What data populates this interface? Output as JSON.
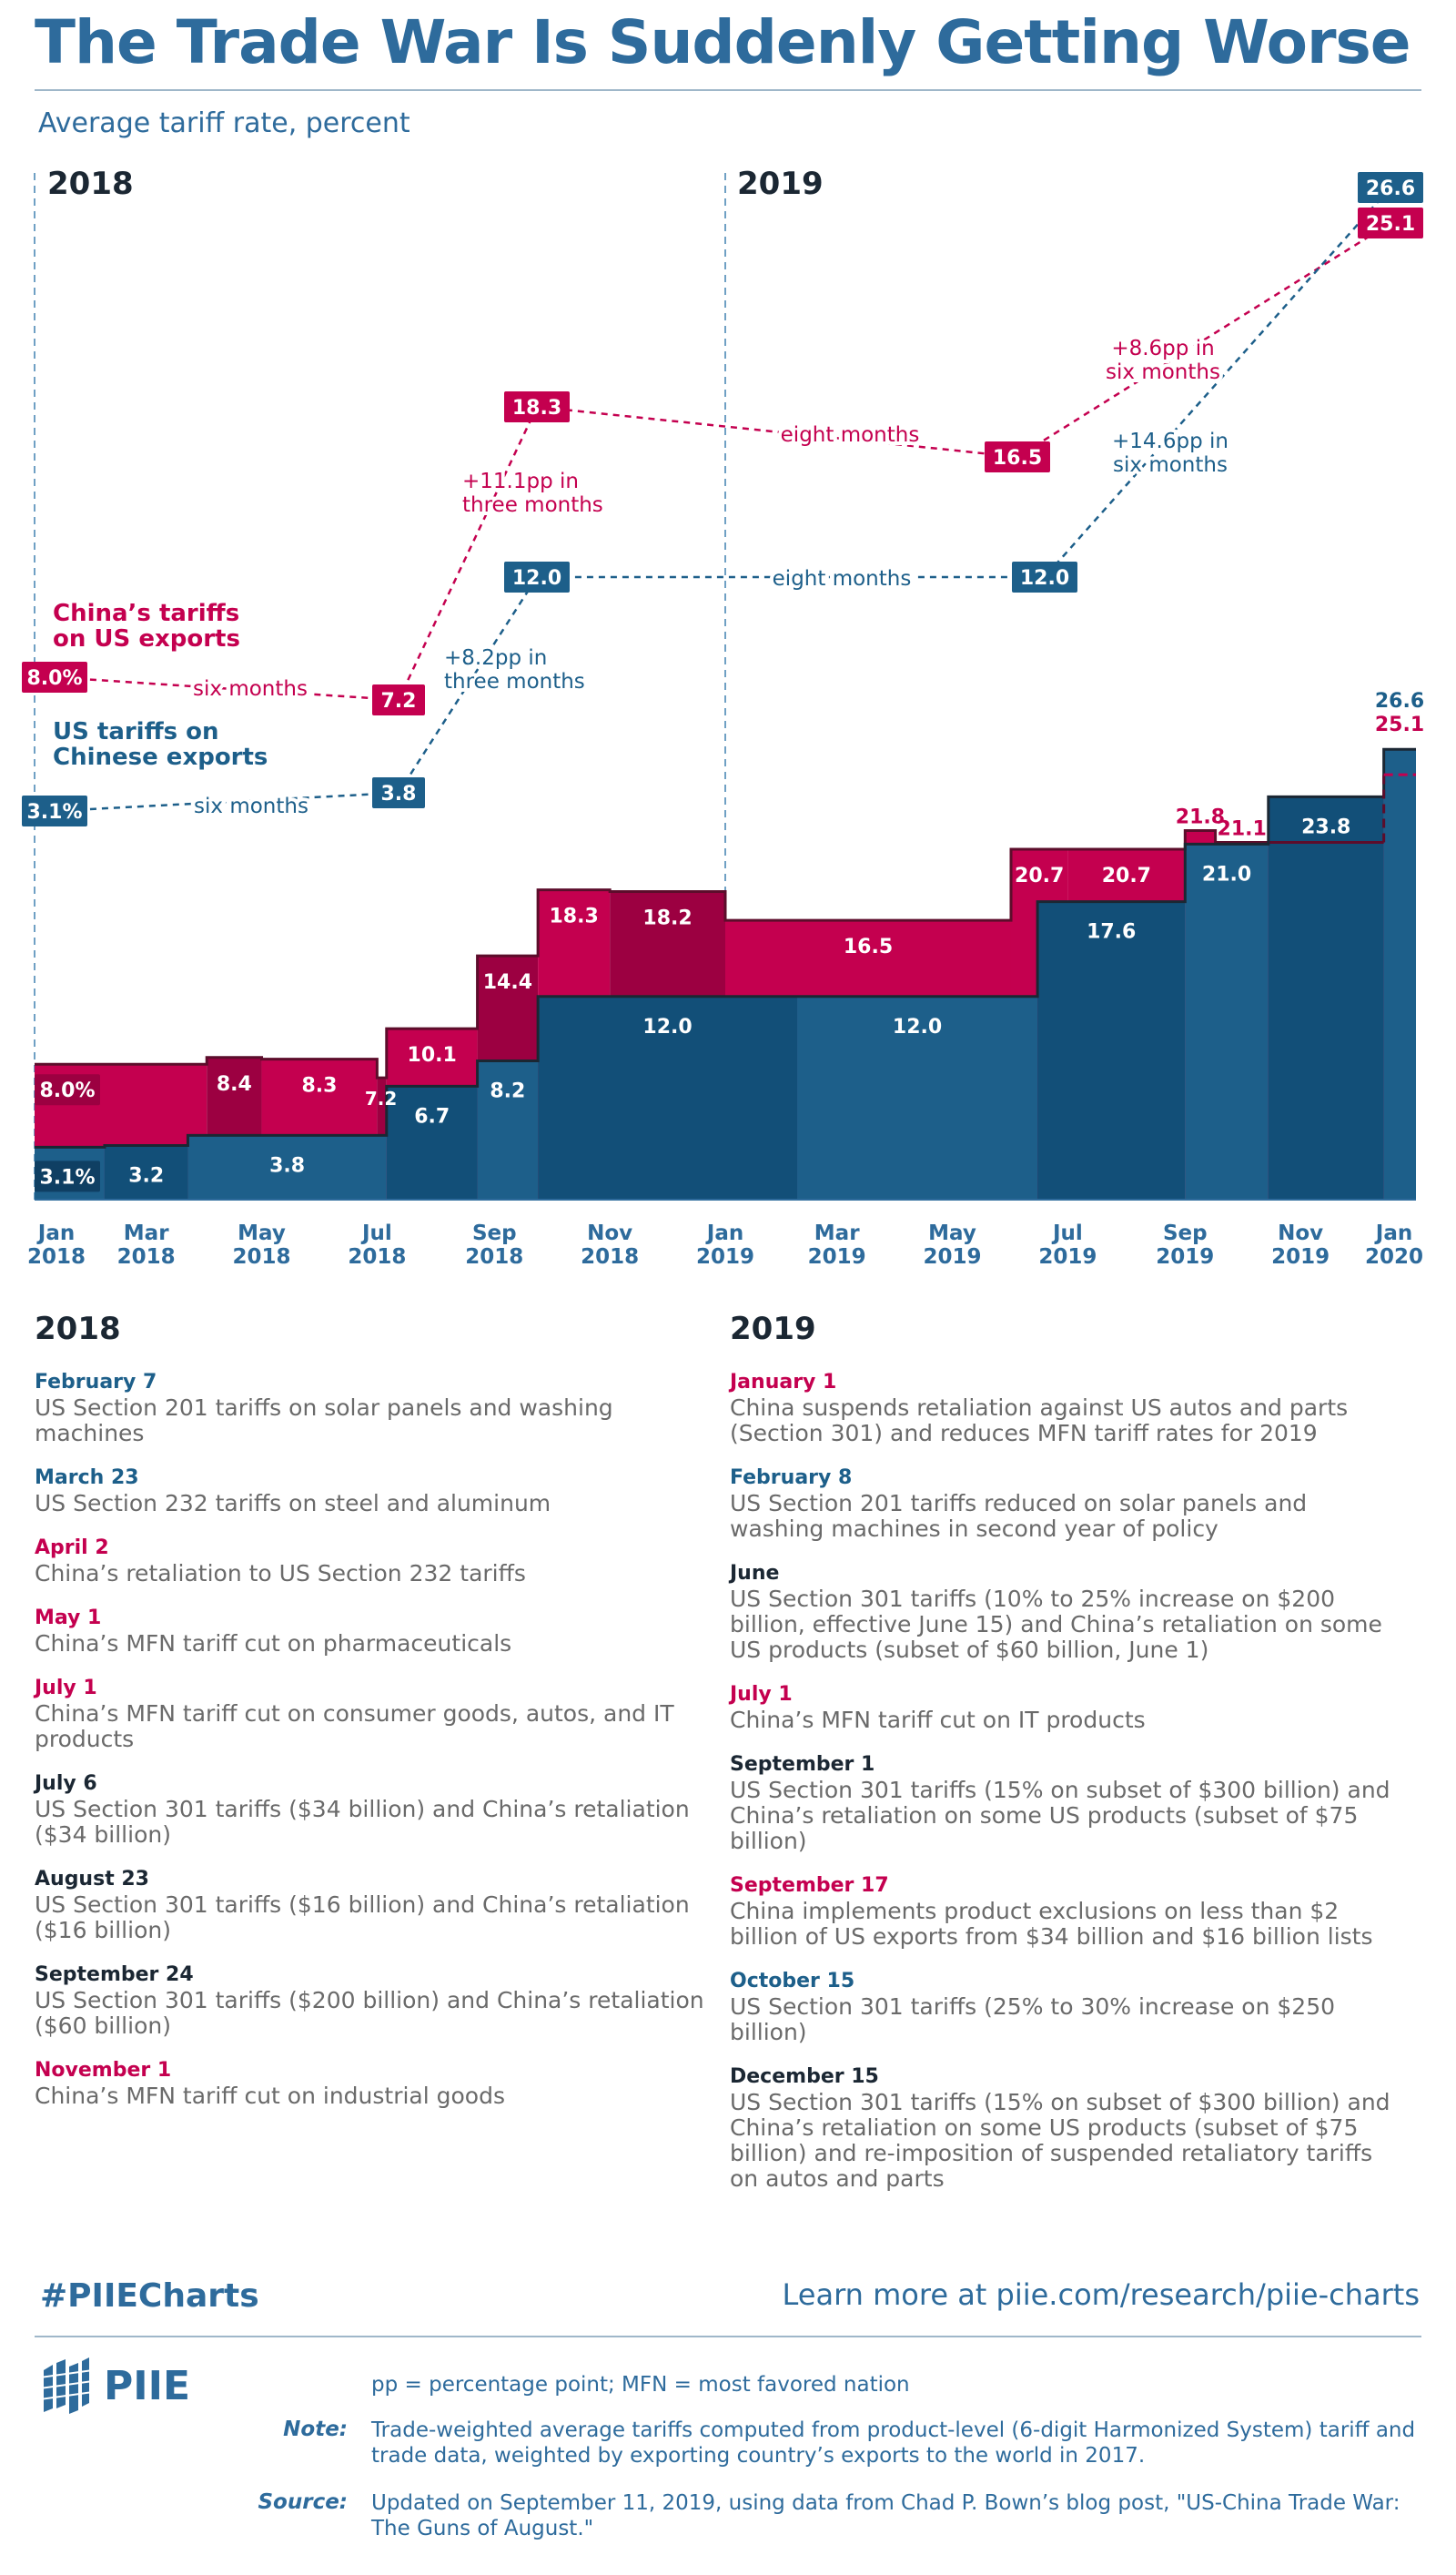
{
  "header": {
    "title": "The Trade War Is Suddenly Getting Worse",
    "subtitle": "Average tariff rate, percent",
    "year_2018": "2018",
    "year_2019": "2019"
  },
  "colors": {
    "us": "#1d5f8a",
    "us_dark": "#124f78",
    "china": "#c4004f",
    "china_dark": "#9c0041",
    "title_blue": "#2e6b9c",
    "dark_text": "#1b2733",
    "note_grey": "#6a6a6a"
  },
  "chart_data": {
    "type": "area",
    "x_axis_ticks": [
      {
        "month": "Jan",
        "year": "2018"
      },
      {
        "month": "Mar",
        "year": "2018"
      },
      {
        "month": "May",
        "year": "2018"
      },
      {
        "month": "Jul",
        "year": "2018"
      },
      {
        "month": "Sep",
        "year": "2018"
      },
      {
        "month": "Nov",
        "year": "2018"
      },
      {
        "month": "Jan",
        "year": "2019"
      },
      {
        "month": "Mar",
        "year": "2019"
      },
      {
        "month": "May",
        "year": "2019"
      },
      {
        "month": "Jul",
        "year": "2019"
      },
      {
        "month": "Sep",
        "year": "2019"
      },
      {
        "month": "Nov",
        "year": "2019"
      },
      {
        "month": "Jan",
        "year": "2020"
      }
    ],
    "series": [
      {
        "name": "US tariffs on Chinese exports",
        "steps": [
          {
            "from": "2018-01-01",
            "to": "2018-02-07",
            "value": 3.1,
            "label": "3.1%"
          },
          {
            "from": "2018-02-07",
            "to": "2018-03-23",
            "value": 3.2,
            "label": "3.2"
          },
          {
            "from": "2018-03-23",
            "to": "2018-07-06",
            "value": 3.8,
            "label": "3.8"
          },
          {
            "from": "2018-07-06",
            "to": "2018-08-23",
            "value": 6.7,
            "label": "6.7"
          },
          {
            "from": "2018-08-23",
            "to": "2018-09-24",
            "value": 8.2,
            "label": "8.2"
          },
          {
            "from": "2018-09-24",
            "to": "2019-02-08",
            "value": 12.0,
            "label": "12.0"
          },
          {
            "from": "2019-02-08",
            "to": "2019-06-15",
            "value": 12.0,
            "label": "12.0"
          },
          {
            "from": "2019-06-15",
            "to": "2019-09-01",
            "value": 17.6,
            "label": "17.6"
          },
          {
            "from": "2019-09-01",
            "to": "2019-10-15",
            "value": 21.0,
            "label": "21.0"
          },
          {
            "from": "2019-10-15",
            "to": "2019-12-15",
            "value": 23.8,
            "label": "23.8"
          },
          {
            "from": "2019-12-15",
            "to": "2020-01-01",
            "value": 26.6,
            "label": "26.6"
          }
        ]
      },
      {
        "name": "China's tariffs on US exports",
        "steps": [
          {
            "from": "2018-01-01",
            "to": "2018-04-02",
            "value": 8.0,
            "label": "8.0%"
          },
          {
            "from": "2018-04-02",
            "to": "2018-05-01",
            "value": 8.4,
            "label": "8.4"
          },
          {
            "from": "2018-05-01",
            "to": "2018-07-01",
            "value": 8.3,
            "label": "8.3"
          },
          {
            "from": "2018-07-01",
            "to": "2018-07-06",
            "value": 7.2,
            "label": "7.2"
          },
          {
            "from": "2018-07-06",
            "to": "2018-08-23",
            "value": 10.1,
            "label": "10.1"
          },
          {
            "from": "2018-08-23",
            "to": "2018-09-24",
            "value": 14.4,
            "label": "14.4"
          },
          {
            "from": "2018-09-24",
            "to": "2018-11-01",
            "value": 18.3,
            "label": "18.3"
          },
          {
            "from": "2018-11-01",
            "to": "2019-01-01",
            "value": 18.2,
            "label": "18.2"
          },
          {
            "from": "2019-01-01",
            "to": "2019-06-01",
            "value": 16.5,
            "label": "16.5"
          },
          {
            "from": "2019-06-01",
            "to": "2019-07-01",
            "value": 20.7,
            "label": "20.7"
          },
          {
            "from": "2019-07-01",
            "to": "2019-09-01",
            "value": 20.7,
            "label": "20.7"
          },
          {
            "from": "2019-09-01",
            "to": "2019-09-17",
            "value": 21.8,
            "label": "21.8"
          },
          {
            "from": "2019-09-17",
            "to": "2019-12-15",
            "value": 21.1,
            "label": "21.1"
          },
          {
            "from": "2019-12-15",
            "to": "2020-01-01",
            "value": 25.1,
            "label": "25.1"
          }
        ]
      }
    ],
    "annotations": {
      "china_series_label": "China’s tariffs\non US exports",
      "us_series_label": "US tariffs on\nChinese exports",
      "china_path": [
        {
          "date": "2018-01-01",
          "value": "8.0%"
        },
        {
          "date": "2018-07-01",
          "value": "7.2"
        },
        {
          "date": "2018-09-24",
          "value": "18.3"
        },
        {
          "date": "2019-06-01",
          "value": "16.5"
        },
        {
          "date": "2020-01-01",
          "value": "25.1"
        }
      ],
      "us_path": [
        {
          "date": "2018-01-01",
          "value": "3.1%"
        },
        {
          "date": "2018-07-06",
          "value": "3.8"
        },
        {
          "date": "2018-09-24",
          "value": "12.0"
        },
        {
          "date": "2019-06-15",
          "value": "12.0"
        },
        {
          "date": "2020-01-01",
          "value": "26.6"
        }
      ],
      "china_notes": [
        "six months",
        "+11.1pp in\nthree months",
        "eight months",
        "+8.6pp in\nsix months"
      ],
      "us_notes": [
        "six months",
        "+8.2pp in\nthree months",
        "eight months",
        "+14.6pp in\nsix months"
      ],
      "end_us_label": "26.6",
      "end_china_label": "25.1"
    },
    "ylim": [
      0,
      28
    ]
  },
  "events": {
    "year_2018": "2018",
    "year_2019": "2019",
    "list_2018": [
      {
        "date": "February 7",
        "who": "us",
        "desc": "US Section 201 tariffs on solar panels and washing machines"
      },
      {
        "date": "March 23",
        "who": "us",
        "desc": "US Section 232 tariffs on steel and aluminum"
      },
      {
        "date": "April 2",
        "who": "cn",
        "desc": "China’s retaliation to US Section 232 tariffs"
      },
      {
        "date": "May 1",
        "who": "cn",
        "desc": "China’s MFN tariff cut on pharmaceuticals"
      },
      {
        "date": "July 1",
        "who": "cn",
        "desc": "China’s MFN tariff cut on consumer goods, autos, and IT products"
      },
      {
        "date": "July 6",
        "who": "both",
        "desc": "US Section 301 tariffs ($34 billion) and China’s retaliation ($34 billion)"
      },
      {
        "date": "August 23",
        "who": "both",
        "desc": "US Section 301 tariffs ($16 billion) and China’s retaliation ($16 billion)"
      },
      {
        "date": "September 24",
        "who": "both",
        "desc": "US Section 301 tariffs ($200 billion) and China’s retaliation ($60 billion)"
      },
      {
        "date": "November 1",
        "who": "cn",
        "desc": "China’s MFN tariff cut on industrial goods"
      }
    ],
    "list_2019": [
      {
        "date": "January 1",
        "who": "cn",
        "desc": "China suspends retaliation against US autos and parts (Section 301) and reduces MFN tariff rates for 2019"
      },
      {
        "date": "February 8",
        "who": "us",
        "desc": "US Section 201 tariffs reduced on solar panels and washing machines in second year of policy"
      },
      {
        "date": "June",
        "who": "both",
        "desc": "US Section 301 tariffs (10% to 25% increase on $200 billion, effective June 15) and China’s retaliation on some US products (subset of $60 billion, June 1)"
      },
      {
        "date": "July 1",
        "who": "cn",
        "desc": "China’s MFN tariff cut on IT products"
      },
      {
        "date": "September 1",
        "who": "both",
        "desc": "US Section 301 tariffs (15% on subset of $300 billion) and China’s retaliation on some US products (subset of $75 billion)"
      },
      {
        "date": "September 17",
        "who": "cn",
        "desc": "China implements product exclusions on less than $2 billion of US exports from $34 billion and $16 billion lists"
      },
      {
        "date": "October 15",
        "who": "us",
        "desc": "US Section 301 tariffs (25% to 30% increase on $250 billion)"
      },
      {
        "date": "December 15",
        "who": "both",
        "desc": "US Section 301 tariffs (15% on subset of $300 billion) and China’s retaliation on some US products (subset of $75 billion) and re-imposition of suspended retaliatory tariffs on autos and parts"
      }
    ]
  },
  "footer": {
    "hashtag": "#PIIECharts",
    "learn_more": "Learn more at piie.com/research/piie-charts",
    "logo_text": "PIIE",
    "abbrev": "pp = percentage point; MFN = most favored nation",
    "note_label": "Note:",
    "note_text": "Trade-weighted average tariffs computed from product-level (6-digit Harmonized System) tariff and trade data, weighted by exporting country’s exports to the world in 2017.",
    "source_label": "Source:",
    "source_text": "Updated on September 11, 2019, using data from Chad P. Bown’s blog post, \"US-China Trade War: The Guns of August.\""
  }
}
